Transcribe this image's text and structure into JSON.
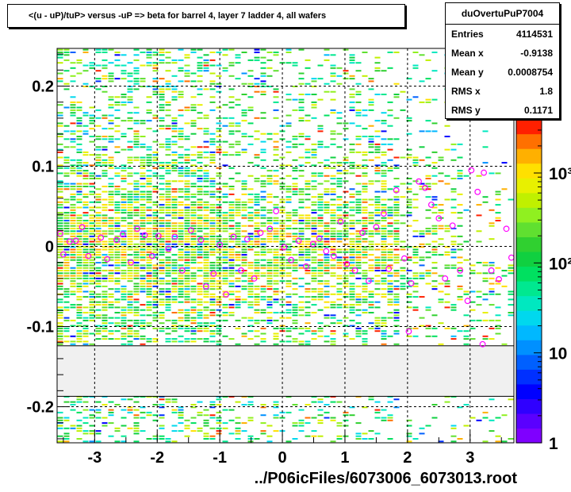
{
  "title": "<(u - uP)/tuP> versus  -uP => beta for barrel 4, layer 7 ladder 4, all wafers",
  "stats": {
    "name": "duOvertuPuP7004",
    "rows": [
      {
        "label": "Entries",
        "value": "4114531"
      },
      {
        "label": "Mean x",
        "value": "-0.9138"
      },
      {
        "label": "Mean y",
        "value": "0.0008754"
      },
      {
        "label": "RMS x",
        "value": "1.8"
      },
      {
        "label": "RMS y",
        "value": "0.1171"
      }
    ]
  },
  "footer": "../P06icFiles/6073006_6073013.root",
  "colors": {
    "palette": [
      "#7f00ff",
      "#5a00ff",
      "#2f00ff",
      "#0000ff",
      "#0030ff",
      "#0060ff",
      "#0090ff",
      "#00b8ff",
      "#00d8ee",
      "#00e8c0",
      "#00e890",
      "#00e060",
      "#10d040",
      "#30d030",
      "#60e030",
      "#90f020",
      "#c0f000",
      "#e8f000",
      "#ffe000",
      "#ffb000",
      "#ff7000",
      "#ff2000"
    ],
    "marker": "#ff00ff",
    "gap_band": "#f0f0f0"
  },
  "chart_data": {
    "type": "heatmap",
    "xlim": [
      -3.6,
      3.7
    ],
    "ylim": [
      -0.245,
      0.247
    ],
    "x_ticks": [
      -3,
      -2,
      -1,
      0,
      1,
      2,
      3
    ],
    "y_ticks": [
      -0.2,
      -0.1,
      0,
      0.1,
      0.2
    ],
    "x_tick_labels": [
      "-3",
      "-2",
      "-1",
      "0",
      "1",
      "2",
      "3"
    ],
    "y_tick_labels": [
      "-0.2",
      "-0.1",
      "0",
      "0.1",
      "0.2"
    ],
    "colorbar": {
      "scale": "log",
      "min": 1,
      "tick_labels": [
        "1",
        "10",
        "10²",
        "10³"
      ],
      "tick_values": [
        1,
        10,
        100,
        1000
      ]
    },
    "empty_band_y": [
      -0.187,
      -0.124
    ],
    "grid": true,
    "profile_markers": [
      {
        "x": -3.55,
        "y": 0.016
      },
      {
        "x": -3.5,
        "y": -0.01
      },
      {
        "x": -3.4,
        "y": 0.006
      },
      {
        "x": -3.3,
        "y": 0.007
      },
      {
        "x": -3.2,
        "y": 0.024
      },
      {
        "x": -3.1,
        "y": -0.012
      },
      {
        "x": -2.9,
        "y": 0.011
      },
      {
        "x": -2.8,
        "y": -0.016
      },
      {
        "x": -2.65,
        "y": 0.008
      },
      {
        "x": -2.55,
        "y": 0.015
      },
      {
        "x": -2.42,
        "y": -0.02
      },
      {
        "x": -2.32,
        "y": 0.022
      },
      {
        "x": -2.2,
        "y": 0.014
      },
      {
        "x": -2.08,
        "y": -0.012
      },
      {
        "x": -1.98,
        "y": 0.013
      },
      {
        "x": -1.82,
        "y": -0.003
      },
      {
        "x": -1.72,
        "y": 0.012
      },
      {
        "x": -1.6,
        "y": -0.03
      },
      {
        "x": -1.46,
        "y": 0.02
      },
      {
        "x": -1.3,
        "y": 0.008
      },
      {
        "x": -1.22,
        "y": -0.05
      },
      {
        "x": -1.1,
        "y": -0.034
      },
      {
        "x": -1.0,
        "y": 0.002
      },
      {
        "x": -0.9,
        "y": -0.06
      },
      {
        "x": -0.78,
        "y": 0.012
      },
      {
        "x": -0.66,
        "y": -0.03
      },
      {
        "x": -0.56,
        "y": 0.009
      },
      {
        "x": -0.45,
        "y": -0.04
      },
      {
        "x": -0.35,
        "y": 0.017
      },
      {
        "x": -0.2,
        "y": 0.022
      },
      {
        "x": -0.1,
        "y": 0.044
      },
      {
        "x": 0.03,
        "y": -0.001
      },
      {
        "x": 0.14,
        "y": -0.017
      },
      {
        "x": 0.26,
        "y": 0.007
      },
      {
        "x": 0.38,
        "y": -0.025
      },
      {
        "x": 0.49,
        "y": 0.003
      },
      {
        "x": 0.59,
        "y": 0.01
      },
      {
        "x": 0.7,
        "y": -0.006
      },
      {
        "x": 0.82,
        "y": -0.012
      },
      {
        "x": 0.93,
        "y": 0.031
      },
      {
        "x": 1.03,
        "y": -0.022
      },
      {
        "x": 1.16,
        "y": -0.03
      },
      {
        "x": 1.28,
        "y": 0.017
      },
      {
        "x": 1.38,
        "y": -0.043
      },
      {
        "x": 1.5,
        "y": 0.024
      },
      {
        "x": 1.62,
        "y": 0.041
      },
      {
        "x": 1.7,
        "y": -0.028
      },
      {
        "x": 1.82,
        "y": 0.07
      },
      {
        "x": 1.95,
        "y": -0.015
      },
      {
        "x": 2.06,
        "y": -0.046
      },
      {
        "x": 2.18,
        "y": 0.081
      },
      {
        "x": 2.28,
        "y": 0.073
      },
      {
        "x": 2.38,
        "y": 0.052
      },
      {
        "x": 2.5,
        "y": 0.035
      },
      {
        "x": 2.6,
        "y": -0.04
      },
      {
        "x": 2.72,
        "y": 0.026
      },
      {
        "x": 2.84,
        "y": -0.03
      },
      {
        "x": 2.96,
        "y": -0.068
      },
      {
        "x": 3.02,
        "y": 0.095
      },
      {
        "x": 3.12,
        "y": 0.068
      },
      {
        "x": 3.22,
        "y": 0.092
      },
      {
        "x": 3.34,
        "y": -0.03
      },
      {
        "x": 3.46,
        "y": -0.041
      },
      {
        "x": 3.58,
        "y": 0.022
      },
      {
        "x": 3.66,
        "y": -0.014
      },
      {
        "x": 3.2,
        "y": -0.122
      },
      {
        "x": 2.02,
        "y": -0.106
      }
    ]
  }
}
